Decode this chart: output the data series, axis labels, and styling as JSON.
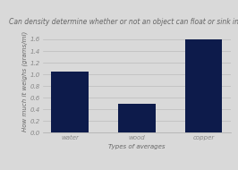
{
  "categories": [
    "water",
    "wood",
    "copper"
  ],
  "values": [
    1.05,
    0.5,
    1.6
  ],
  "bar_color": "#0d1b4b",
  "title": "Can density determine whether or not an object can float or sink in water?",
  "xlabel": "Types of averages",
  "ylabel": "How much it weighs (grams/ml)",
  "ylim": [
    0,
    1.75
  ],
  "yticks": [
    0,
    0.2,
    0.4,
    0.6,
    0.8,
    1.0,
    1.2,
    1.4,
    1.6
  ],
  "background_color": "#d9d9d9",
  "title_fontsize": 5.5,
  "label_fontsize": 5.0,
  "tick_fontsize": 5.0,
  "bar_width": 0.55
}
